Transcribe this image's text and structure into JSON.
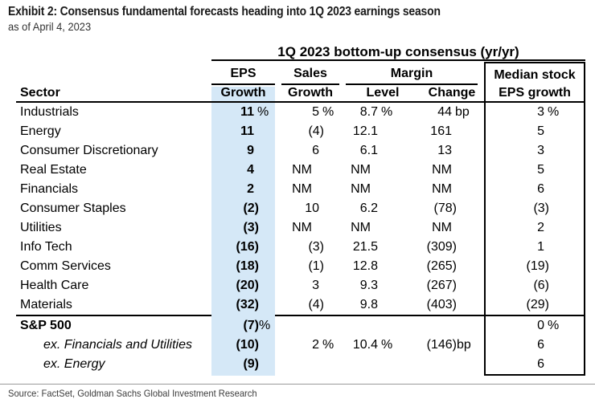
{
  "exhibit": {
    "title": "Exhibit 2: Consensus fundamental forecasts heading into 1Q 2023 earnings season",
    "as_of": "as of April 4, 2023",
    "source": "Source: FactSet, Goldman Sachs Global Investment Research"
  },
  "table": {
    "span_header": "1Q 2023 bottom-up consensus (yr/yr)",
    "groups": {
      "eps": "EPS",
      "sales": "Sales",
      "margin": "Margin",
      "median": "Median stock"
    },
    "headers": {
      "sector": "Sector",
      "eps_growth": "Growth",
      "sales_growth": "Growth",
      "level": "Level",
      "change": "Change",
      "median": "EPS growth"
    },
    "highlight_color": "#d5e8f7",
    "not_meaningful_label": "NM",
    "rows": [
      {
        "sector": "Industrials",
        "cells": [
          {
            "v": "11",
            "u": "%"
          },
          {
            "v": "5",
            "u": "%"
          },
          {
            "v": "8.7",
            "u": "%"
          },
          {
            "v": "44",
            "u": "bp"
          },
          {
            "v": "3",
            "u": "%"
          }
        ]
      },
      {
        "sector": "Energy",
        "cells": [
          {
            "v": "11"
          },
          {
            "v": "(4)"
          },
          {
            "v": "12.1"
          },
          {
            "v": "161"
          },
          {
            "v": "5"
          }
        ]
      },
      {
        "sector": "Consumer Discretionary",
        "cells": [
          {
            "v": "9"
          },
          {
            "v": "6"
          },
          {
            "v": "6.1"
          },
          {
            "v": "13"
          },
          {
            "v": "3"
          }
        ]
      },
      {
        "sector": "Real Estate",
        "cells": [
          {
            "v": "4"
          },
          {
            "v": "NM"
          },
          {
            "v": "NM"
          },
          {
            "v": "NM"
          },
          {
            "v": "5"
          }
        ]
      },
      {
        "sector": "Financials",
        "cells": [
          {
            "v": "2"
          },
          {
            "v": "NM"
          },
          {
            "v": "NM"
          },
          {
            "v": "NM"
          },
          {
            "v": "6"
          }
        ]
      },
      {
        "sector": "Consumer Staples",
        "cells": [
          {
            "v": "(2)"
          },
          {
            "v": "10"
          },
          {
            "v": "6.2"
          },
          {
            "v": "(78)"
          },
          {
            "v": "(3)"
          }
        ]
      },
      {
        "sector": "Utilities",
        "cells": [
          {
            "v": "(3)"
          },
          {
            "v": "NM"
          },
          {
            "v": "NM"
          },
          {
            "v": "NM"
          },
          {
            "v": "2"
          }
        ]
      },
      {
        "sector": "Info Tech",
        "cells": [
          {
            "v": "(16)"
          },
          {
            "v": "(3)"
          },
          {
            "v": "21.5"
          },
          {
            "v": "(309)"
          },
          {
            "v": "1"
          }
        ]
      },
      {
        "sector": "Comm Services",
        "cells": [
          {
            "v": "(18)"
          },
          {
            "v": "(1)"
          },
          {
            "v": "12.8"
          },
          {
            "v": "(265)"
          },
          {
            "v": "(19)"
          }
        ]
      },
      {
        "sector": "Health Care",
        "cells": [
          {
            "v": "(20)"
          },
          {
            "v": "3"
          },
          {
            "v": "9.3"
          },
          {
            "v": "(267)"
          },
          {
            "v": "(6)"
          }
        ]
      },
      {
        "sector": "Materials",
        "cells": [
          {
            "v": "(32)"
          },
          {
            "v": "(4)"
          },
          {
            "v": "9.8"
          },
          {
            "v": "(403)"
          },
          {
            "v": "(29)"
          }
        ]
      }
    ],
    "summary_rows": [
      {
        "sector": "S&P 500",
        "style": "bold",
        "cells": [
          {
            "v": "(7)",
            "u": "%",
            "tight": true
          },
          {},
          {},
          {},
          {
            "v": "0",
            "u": "%"
          }
        ]
      },
      {
        "sector": "ex. Financials and Utilities",
        "style": "italic",
        "cells": [
          {
            "v": "(10)"
          },
          {
            "v": "2",
            "u": "%"
          },
          {
            "v": "10.4",
            "u": "%"
          },
          {
            "v": "(146)",
            "u": "bp",
            "tight": true
          },
          {
            "v": "6"
          }
        ]
      },
      {
        "sector": "ex. Energy",
        "style": "italic",
        "cells": [
          {
            "v": "(9)"
          },
          {},
          {},
          {},
          {
            "v": "6"
          }
        ]
      }
    ]
  }
}
